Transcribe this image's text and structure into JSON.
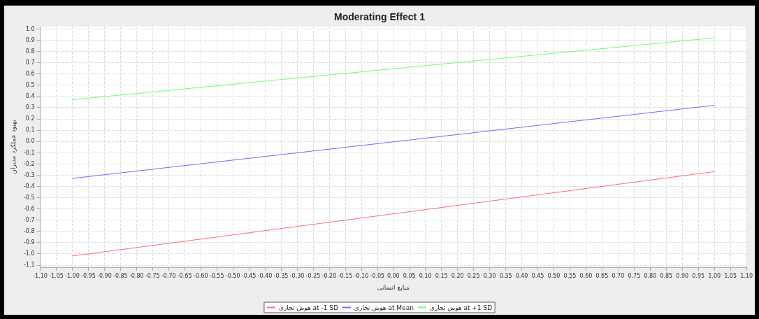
{
  "chart_data": {
    "type": "line",
    "title": "Moderating Effect 1",
    "xlabel": "منابع انسانی",
    "ylabel": "بهبود عملکرد مدیران",
    "x": [
      -1.0,
      1.0
    ],
    "series": [
      {
        "name": "هوش تجاری at -1 SD",
        "color": "#ff6b6b",
        "values": [
          -1.02,
          -0.27
        ]
      },
      {
        "name": "هوش تجاری at Mean",
        "color": "#6b6bff",
        "values": [
          -0.33,
          0.32
        ]
      },
      {
        "name": "هوش تجاری at +1 SD",
        "color": "#6bff6b",
        "values": [
          0.37,
          0.92
        ]
      }
    ],
    "xlim": [
      -1.1,
      1.1
    ],
    "xticks": [
      {
        "value": -1.1,
        "label": "-1.10"
      },
      {
        "value": -1.05,
        "label": "-1.05"
      },
      {
        "value": -1.0,
        "label": "-1.00"
      },
      {
        "value": -0.95,
        "label": "-0.95"
      },
      {
        "value": -0.9,
        "label": "-0.90"
      },
      {
        "value": -0.85,
        "label": "-0.85"
      },
      {
        "value": -0.8,
        "label": "-0.80"
      },
      {
        "value": -0.75,
        "label": "-0.75"
      },
      {
        "value": -0.7,
        "label": "-0.70"
      },
      {
        "value": -0.65,
        "label": "-0.65"
      },
      {
        "value": -0.6,
        "label": "-0.60"
      },
      {
        "value": -0.55,
        "label": "-0.55"
      },
      {
        "value": -0.5,
        "label": "-0.50"
      },
      {
        "value": -0.45,
        "label": "-0.45"
      },
      {
        "value": -0.4,
        "label": "-0.40"
      },
      {
        "value": -0.35,
        "label": "-0.35"
      },
      {
        "value": -0.3,
        "label": "-0.30"
      },
      {
        "value": -0.25,
        "label": "-0.25"
      },
      {
        "value": -0.2,
        "label": "-0.20"
      },
      {
        "value": -0.15,
        "label": "-0.15"
      },
      {
        "value": -0.1,
        "label": "-0.10"
      },
      {
        "value": -0.05,
        "label": "-0.05"
      },
      {
        "value": 0,
        "label": "0.00"
      },
      {
        "value": 0.05,
        "label": "0.05"
      },
      {
        "value": 0.1,
        "label": "0.10"
      },
      {
        "value": 0.15,
        "label": "0.15"
      },
      {
        "value": 0.2,
        "label": "0.20"
      },
      {
        "value": 0.25,
        "label": "0.25"
      },
      {
        "value": 0.3,
        "label": "0.30"
      },
      {
        "value": 0.35,
        "label": "0.35"
      },
      {
        "value": 0.4,
        "label": "0.40"
      },
      {
        "value": 0.45,
        "label": "0.45"
      },
      {
        "value": 0.5,
        "label": "0.50"
      },
      {
        "value": 0.55,
        "label": "0.55"
      },
      {
        "value": 0.6,
        "label": "0.60"
      },
      {
        "value": 0.65,
        "label": "0.65"
      },
      {
        "value": 0.7,
        "label": "0.70"
      },
      {
        "value": 0.75,
        "label": "0.75"
      },
      {
        "value": 0.8,
        "label": "0.80"
      },
      {
        "value": 0.85,
        "label": "0.85"
      },
      {
        "value": 0.9,
        "label": "0.90"
      },
      {
        "value": 0.95,
        "label": "0.95"
      },
      {
        "value": 1.0,
        "label": "1.00"
      },
      {
        "value": 1.05,
        "label": "1.05"
      },
      {
        "value": 1.1,
        "label": "1.10"
      }
    ],
    "ylim": [
      -1.12,
      1.02
    ],
    "yticks": [
      -1.1,
      {
        "value": -1,
        "label": "-1.0"
      },
      -0.9,
      -0.8,
      -0.7,
      -0.6,
      -0.5,
      -0.4,
      -0.3,
      -0.2,
      -0.1,
      {
        "value": 0,
        "label": "0.0"
      },
      0.1,
      0.2,
      0.3,
      0.4,
      0.5,
      0.6,
      0.7,
      0.8,
      0.9,
      {
        "value": 1,
        "label": "1.0"
      }
    ],
    "grid": true,
    "legend": "bottom",
    "marker": "none",
    "line_style": "solid"
  }
}
